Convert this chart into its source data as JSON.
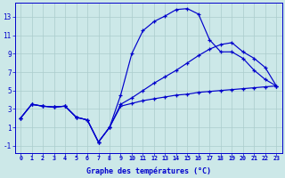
{
  "xlabel": "Graphe des températures (°C)",
  "bg_color": "#cce8e8",
  "grid_color": "#aacccc",
  "line_color": "#0000cc",
  "xlim": [
    -0.5,
    23.5
  ],
  "ylim": [
    -1.8,
    14.5
  ],
  "xticks": [
    0,
    1,
    2,
    3,
    4,
    5,
    6,
    7,
    8,
    9,
    10,
    11,
    12,
    13,
    14,
    15,
    16,
    17,
    18,
    19,
    20,
    21,
    22,
    23
  ],
  "yticks": [
    -1,
    1,
    3,
    5,
    7,
    9,
    11,
    13
  ],
  "hours": [
    0,
    1,
    2,
    3,
    4,
    5,
    6,
    7,
    8,
    9,
    10,
    11,
    12,
    13,
    14,
    15,
    16,
    17,
    18,
    19,
    20,
    21,
    22,
    23
  ],
  "temp_actual": [
    2.0,
    3.5,
    3.3,
    3.2,
    3.3,
    2.1,
    1.8,
    -0.6,
    1.0,
    4.5,
    9.0,
    11.5,
    12.5,
    13.1,
    13.8,
    13.9,
    13.3,
    10.5,
    9.2,
    9.2,
    8.5,
    7.2,
    6.2,
    5.5
  ],
  "temp_max": [
    2.0,
    3.5,
    3.3,
    3.2,
    3.3,
    2.1,
    1.8,
    -0.6,
    1.0,
    3.5,
    4.2,
    5.0,
    5.8,
    6.5,
    7.2,
    8.0,
    8.8,
    9.5,
    10.0,
    10.2,
    9.2,
    8.5,
    7.5,
    5.5
  ],
  "temp_min": [
    2.0,
    3.5,
    3.3,
    3.2,
    3.3,
    2.1,
    1.8,
    -0.6,
    1.0,
    3.3,
    3.6,
    3.9,
    4.1,
    4.3,
    4.5,
    4.6,
    4.8,
    4.9,
    5.0,
    5.1,
    5.2,
    5.3,
    5.4,
    5.5
  ]
}
